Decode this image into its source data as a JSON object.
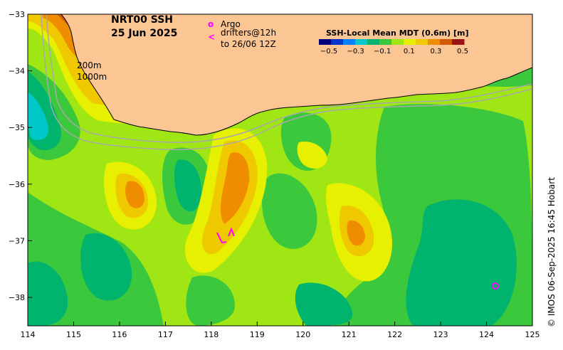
{
  "title": {
    "line1": "NRT00 SSH",
    "line2": "25 Jun 2025"
  },
  "legend": {
    "argo_symbol": "o",
    "argo_label": "Argo",
    "drifter_symbol": "<",
    "drifter_label_1": "drifters@12h",
    "drifter_label_2": "to 26/06 12Z"
  },
  "colorbar": {
    "title": "SSH-Local Mean MDT (0.6m) [m]",
    "ticks": [
      "−0.5",
      "−0.3",
      "−0.1",
      "0.1",
      "0.3",
      "0.5"
    ],
    "colors": [
      "#00007f",
      "#0033cc",
      "#0080ff",
      "#00c8c8",
      "#00b46e",
      "#3cc83c",
      "#a0e614",
      "#e6f000",
      "#f0c800",
      "#f08c00",
      "#d25a00",
      "#9b1414"
    ]
  },
  "isobaths": {
    "label_1": "200m",
    "label_2": "1000m"
  },
  "axes": {
    "x_ticks": [
      "114",
      "115",
      "116",
      "117",
      "118",
      "119",
      "120",
      "121",
      "122",
      "123",
      "124",
      "125"
    ],
    "y_ticks": [
      "−33",
      "−34",
      "−35",
      "−36",
      "−37",
      "−38"
    ]
  },
  "credit": "© IMOS 06-Sep-2025 16:45 Hobart",
  "colors": {
    "land": "#fcc594",
    "drifter": "#ff00ff",
    "argo": "#ff00ff"
  }
}
